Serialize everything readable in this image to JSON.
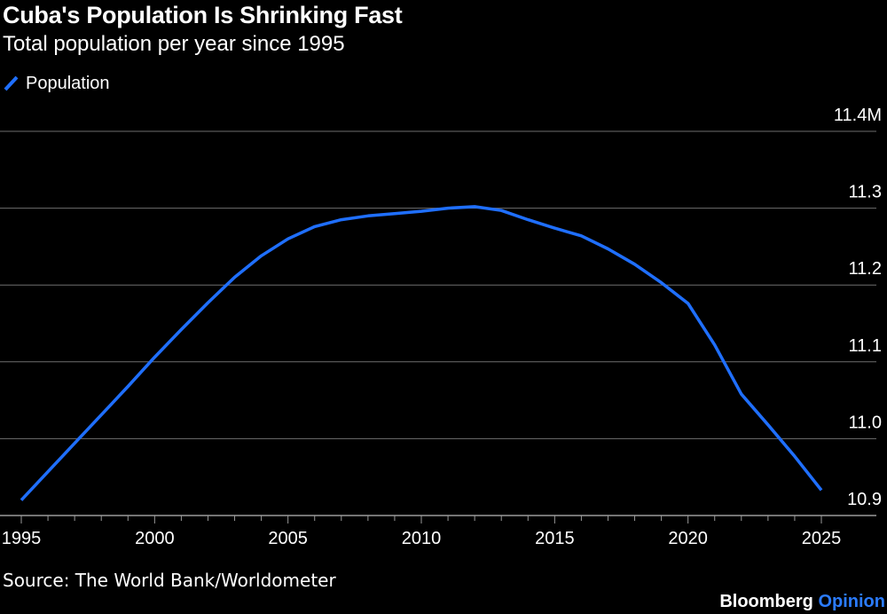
{
  "chart_data": {
    "type": "line",
    "title": "Cuba's Population Is Shrinking Fast",
    "subtitle": "Total population per year since 1995",
    "xlabel": "",
    "ylabel": "",
    "xlim": [
      1995,
      2025
    ],
    "ylim": [
      10.9,
      11.4
    ],
    "x_ticks": [
      1995,
      2000,
      2005,
      2010,
      2015,
      2020,
      2025
    ],
    "x_tick_labels": [
      "1995",
      "2000",
      "2005",
      "2010",
      "2015",
      "2020",
      "2025"
    ],
    "y_ticks": [
      10.9,
      11.0,
      11.1,
      11.2,
      11.3,
      11.4
    ],
    "y_tick_labels": [
      "10.9",
      "11.0",
      "11.1",
      "11.2",
      "11.3",
      "11.4M"
    ],
    "legend_position": "top-left",
    "grid": true,
    "series": [
      {
        "name": "Population",
        "color": "#1f6fff",
        "x": [
          1995,
          1996,
          1997,
          1998,
          1999,
          2000,
          2001,
          2002,
          2003,
          2004,
          2005,
          2006,
          2007,
          2008,
          2009,
          2010,
          2011,
          2012,
          2013,
          2014,
          2015,
          2016,
          2017,
          2018,
          2019,
          2020,
          2021,
          2022,
          2023,
          2024,
          2025
        ],
        "values": [
          10.92,
          10.957,
          10.994,
          11.031,
          11.068,
          11.106,
          11.142,
          11.177,
          11.21,
          11.238,
          11.26,
          11.276,
          11.285,
          11.29,
          11.293,
          11.296,
          11.3,
          11.302,
          11.297,
          11.285,
          11.274,
          11.264,
          11.247,
          11.227,
          11.203,
          11.176,
          11.122,
          11.058,
          11.018,
          10.977,
          10.933
        ]
      }
    ]
  },
  "legend": {
    "label": "Population"
  },
  "footer": {
    "source": "Source: The World Bank/Worldometer",
    "brand_main": "Bloomberg",
    "brand_accent": "Opinion"
  },
  "colors": {
    "background": "#000000",
    "gridline": "#6e6e6e",
    "line": "#1f6fff",
    "accent": "#2b7cff"
  }
}
